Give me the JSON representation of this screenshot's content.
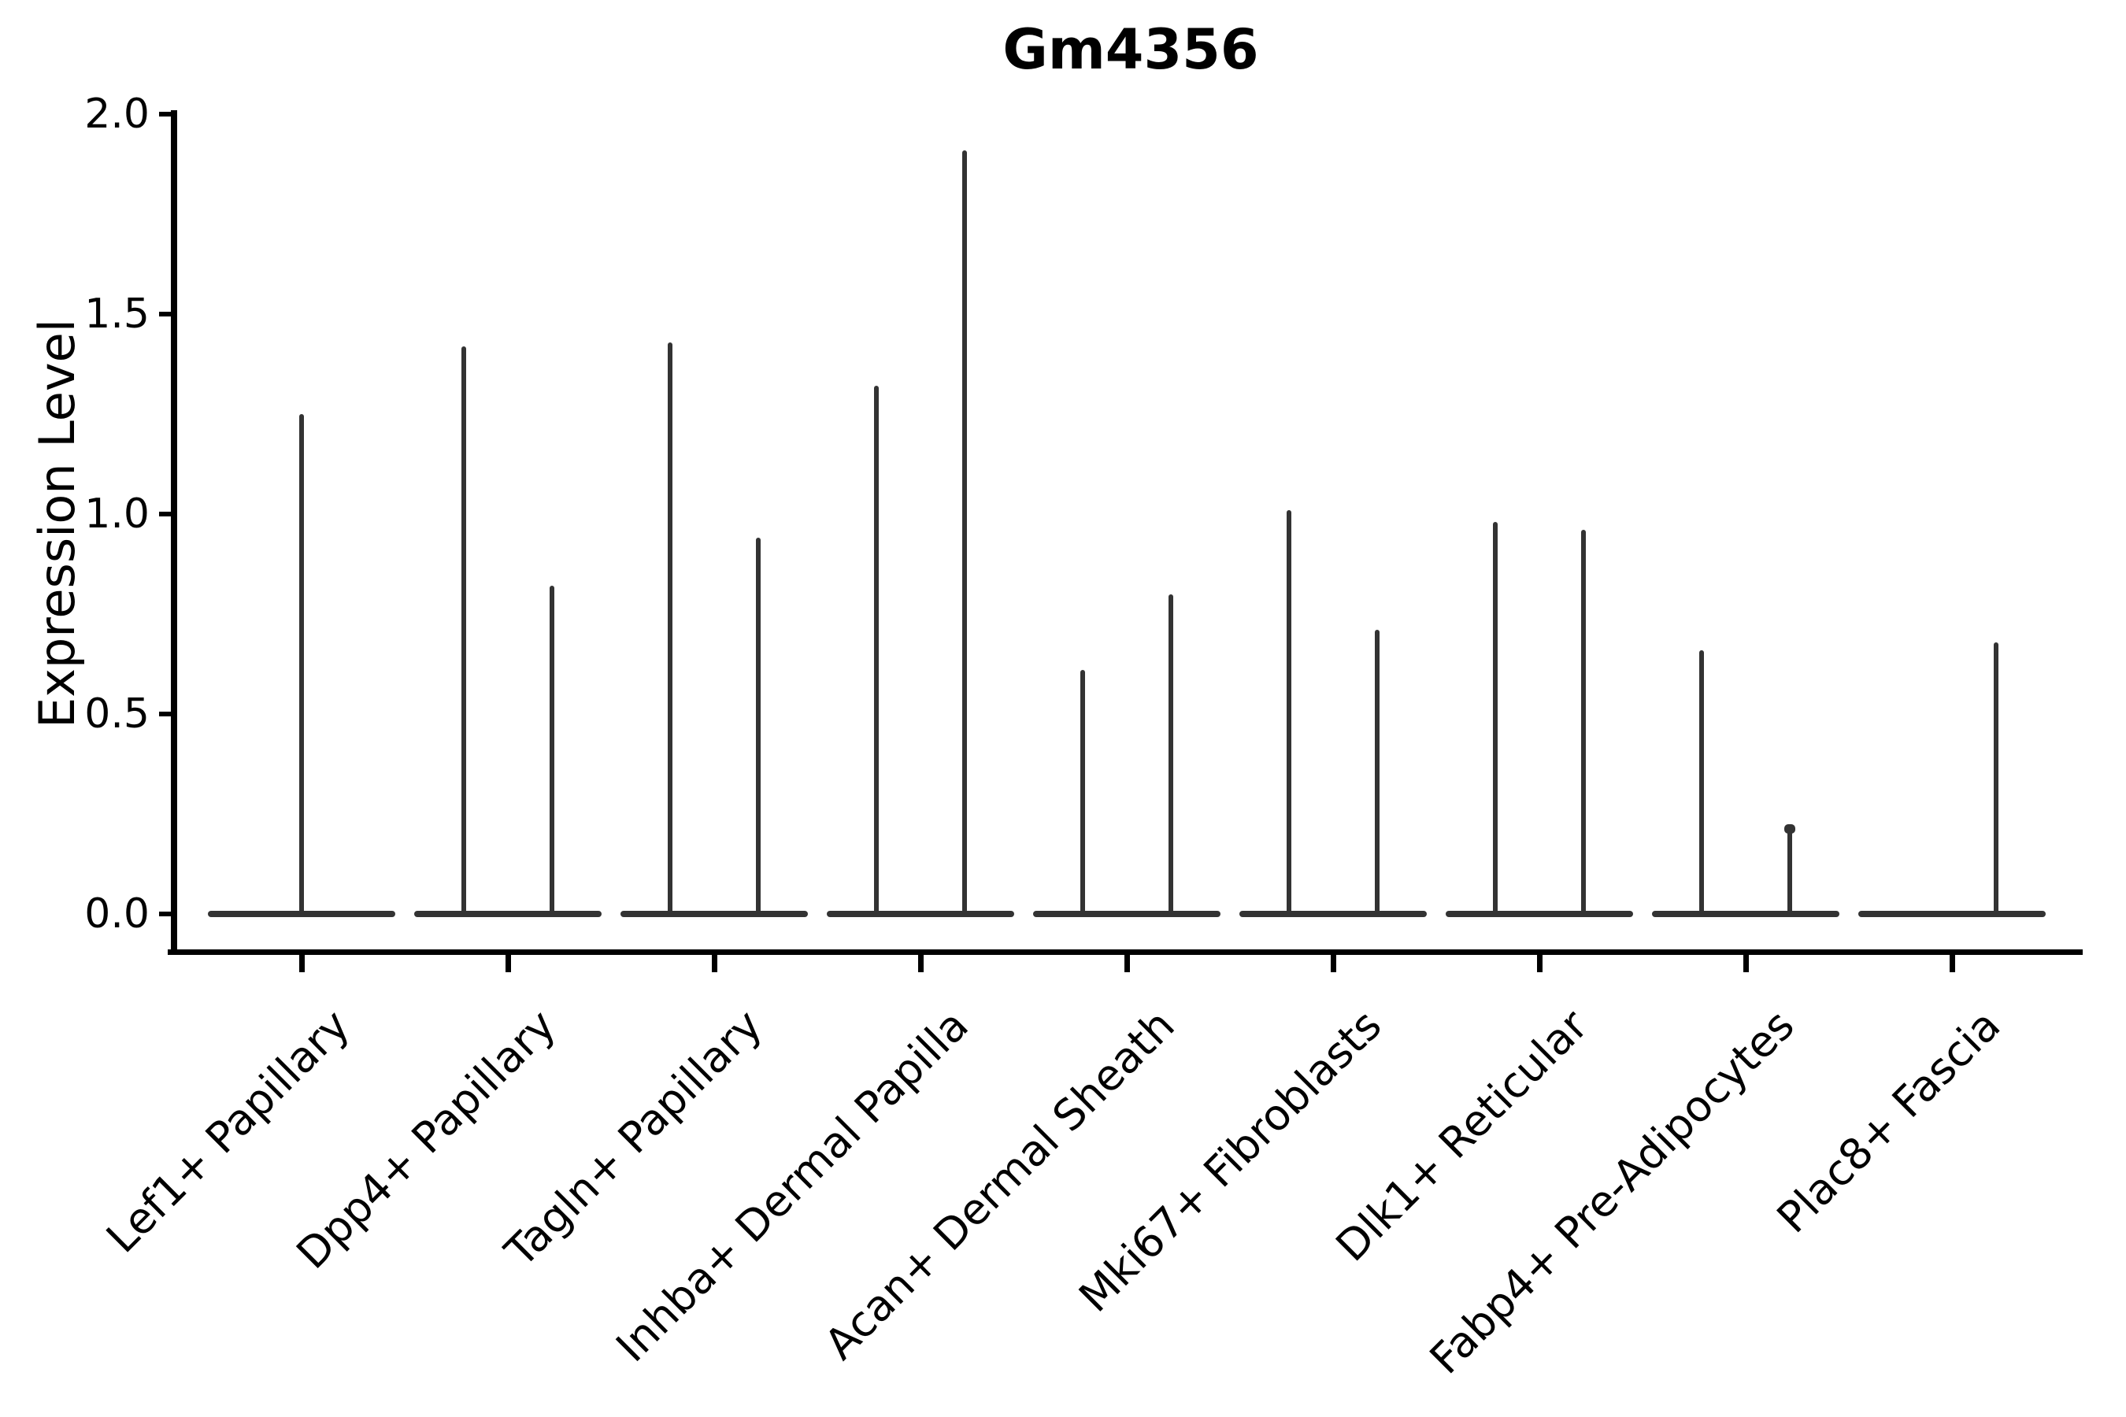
{
  "chart_data": {
    "type": "violin",
    "title": "Gm4356",
    "ylabel": "Expression Level",
    "xlabel": "",
    "ylim": [
      0.0,
      2.0
    ],
    "yticks": [
      "0.0",
      "0.5",
      "1.0",
      "1.5",
      "2.0"
    ],
    "grid": false,
    "legend": null,
    "style_note": "Seurat/scanpy-style stacked violin: each cell type shows a wide flat violin body at 0 with thin vertical density tails (spikes) marking the few expressing cells",
    "categories": [
      "Lef1+ Papillary",
      "Dpp4+ Papillary",
      "Tagln+ Papillary",
      "Inhba+ Dermal Papilla",
      "Acan+ Dermal Sheath",
      "Mki67+ Fibroblasts",
      "Dlk1+ Reticular",
      "Fabp4+ Pre-Adipocytes",
      "Plac8+ Fascia"
    ],
    "violins": [
      {
        "category": "Lef1+ Papillary",
        "spikes": [
          {
            "position": "center",
            "value": 1.25
          }
        ]
      },
      {
        "category": "Dpp4+ Papillary",
        "spikes": [
          {
            "position": "left",
            "value": 1.42
          },
          {
            "position": "right",
            "value": 0.82
          }
        ]
      },
      {
        "category": "Tagln+ Papillary",
        "spikes": [
          {
            "position": "left",
            "value": 1.43
          },
          {
            "position": "right",
            "value": 0.94
          }
        ]
      },
      {
        "category": "Inhba+ Dermal Papilla",
        "spikes": [
          {
            "position": "left",
            "value": 1.32
          },
          {
            "position": "right",
            "value": 1.91
          }
        ]
      },
      {
        "category": "Acan+ Dermal Sheath",
        "spikes": [
          {
            "position": "left",
            "value": 0.61
          },
          {
            "position": "right",
            "value": 0.8
          }
        ]
      },
      {
        "category": "Mki67+ Fibroblasts",
        "spikes": [
          {
            "position": "left",
            "value": 1.01
          },
          {
            "position": "right",
            "value": 0.71
          }
        ]
      },
      {
        "category": "Dlk1+ Reticular",
        "spikes": [
          {
            "position": "left",
            "value": 0.98
          },
          {
            "position": "right",
            "value": 0.96
          }
        ]
      },
      {
        "category": "Fabp4+ Pre-Adipocytes",
        "spikes": [
          {
            "position": "left",
            "value": 0.66
          },
          {
            "position": "right",
            "value": 0.22,
            "knob": true
          }
        ]
      },
      {
        "category": "Plac8+ Fascia",
        "spikes": [
          {
            "position": "right",
            "value": 0.68
          }
        ]
      }
    ],
    "colors": {
      "violin": "#333333",
      "axis": "#000000",
      "text": "#000000",
      "background": "#ffffff"
    }
  }
}
